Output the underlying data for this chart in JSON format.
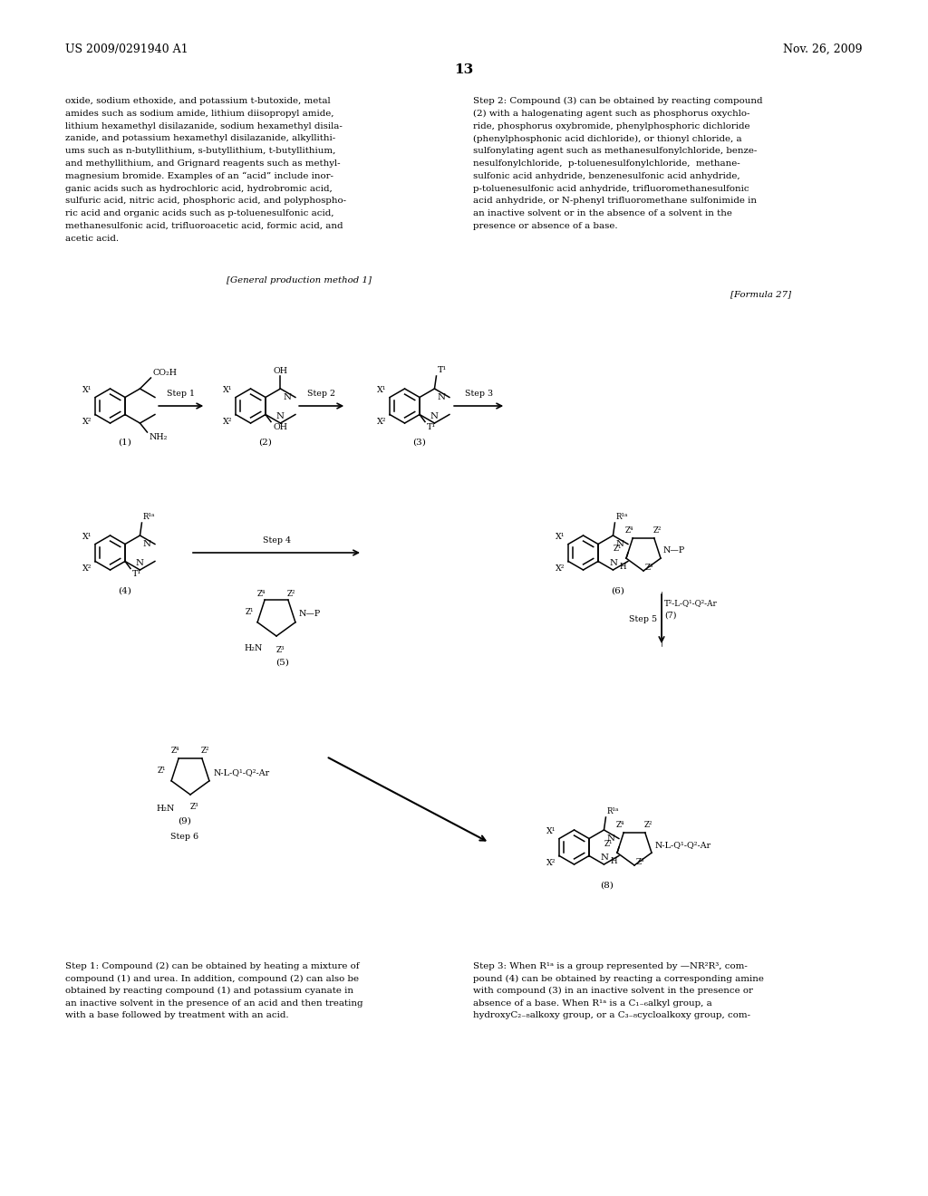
{
  "header_left": "US 2009/0291940 A1",
  "header_right": "Nov. 26, 2009",
  "page_number": "13",
  "left_text_lines": [
    "oxide, sodium ethoxide, and potassium t-butoxide, metal",
    "amides such as sodium amide, lithium diisopropyl amide,",
    "lithium hexamethyl disilazanide, sodium hexamethyl disila-",
    "zanide, and potassium hexamethyl disilazanide, alkyllithi-",
    "ums such as n-butyllithium, s-butyllithium, t-butyllithium,",
    "and methyllithium, and Grignard reagents such as methyl-",
    "magnesium bromide. Examples of an “acid” include inor-",
    "ganic acids such as hydrochloric acid, hydrobromic acid,",
    "sulfuric acid, nitric acid, phosphoric acid, and polyphospho-",
    "ric acid and organic acids such as p-toluenesulfonic acid,",
    "methanesulfonic acid, trifluoroacetic acid, formic acid, and",
    "acetic acid."
  ],
  "right_text_lines": [
    "Step 2: Compound (3) can be obtained by reacting compound",
    "(2) with a halogenating agent such as phosphorus oxychlo-",
    "ride, phosphorus oxybromide, phenylphosphoric dichloride",
    "(phenylphosphonic acid dichloride), or thionyl chloride, a",
    "sulfonylating agent such as methanesulfonylchloride, benze-",
    "nesulfonylchloride,  p-toluenesulfonylchloride,  methane-",
    "sulfonic acid anhydride, benzenesulfonic acid anhydride,",
    "p-toluenesulfonic acid anhydride, trifluoromethanesulfonic",
    "acid anhydride, or N-phenyl trifluoromethane sulfonimide in",
    "an inactive solvent or in the absence of a solvent in the",
    "presence or absence of a base."
  ],
  "bottom_left_lines": [
    "Step 1: Compound (2) can be obtained by heating a mixture of",
    "compound (1) and urea. In addition, compound (2) can also be",
    "obtained by reacting compound (1) and potassium cyanate in",
    "an inactive solvent in the presence of an acid and then treating",
    "with a base followed by treatment with an acid."
  ],
  "bottom_right_lines": [
    "Step 3: When R¹ᵃ is a group represented by —NR²R³, com-",
    "pound (4) can be obtained by reacting a corresponding amine",
    "with compound (3) in an inactive solvent in the presence or",
    "absence of a base. When R¹ᵃ is a C₁₋₆alkyl group, a",
    "hydroxyC₂₋₈alkoxy group, or a C₃₋₈cycloalkoxy group, com-"
  ],
  "formula_label": "[General production method 1]",
  "formula27_label": "[Formula 27]",
  "bg_color": "#ffffff",
  "text_color": "#000000"
}
